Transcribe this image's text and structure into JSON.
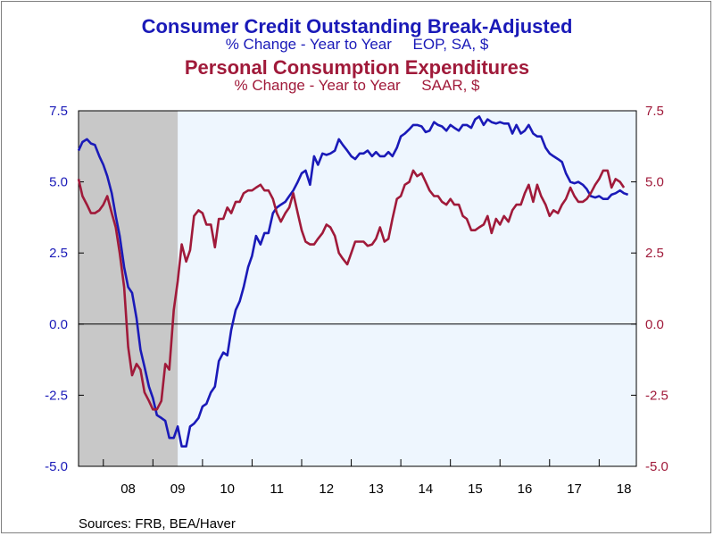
{
  "titles": {
    "title1": "Consumer Credit Outstanding Break-Adjusted",
    "subtitle1": "% Change - Year to Year     EOP, SA, $",
    "title2": "Personal Consumption Expenditures",
    "subtitle2": "% Change - Year to Year     SAAR, $"
  },
  "source": "Sources:  FRB, BEA/Haver",
  "colors": {
    "series1": "#1a1ab8",
    "series2": "#a01a3a",
    "plot_bg": "#eef6fe",
    "recession": "#c8c8c8",
    "axis": "#000000"
  },
  "chart_data": {
    "type": "line",
    "x_range": [
      2007.5,
      2018.75
    ],
    "y_left": {
      "ylim": [
        -5.0,
        7.5
      ],
      "ticks": [
        "7.5",
        "5.0",
        "2.5",
        "0.0",
        "-2.5",
        "-5.0"
      ],
      "tick_values": [
        7.5,
        5.0,
        2.5,
        0.0,
        -2.5,
        -5.0
      ]
    },
    "y_right": {
      "ylim": [
        -5.0,
        7.5
      ],
      "ticks": [
        "7.5",
        "5.0",
        "2.5",
        "0.0",
        "-2.5",
        "-5.0"
      ],
      "tick_values": [
        7.5,
        5.0,
        2.5,
        0.0,
        -2.5,
        -5.0
      ]
    },
    "x_tick_labels": [
      {
        "label": "08",
        "x": 2008.5
      },
      {
        "label": "09",
        "x": 2009.5
      },
      {
        "label": "10",
        "x": 2010.5
      },
      {
        "label": "11",
        "x": 2011.5
      },
      {
        "label": "12",
        "x": 2012.5
      },
      {
        "label": "13",
        "x": 2013.5
      },
      {
        "label": "14",
        "x": 2014.5
      },
      {
        "label": "15",
        "x": 2015.5
      },
      {
        "label": "16",
        "x": 2016.5
      },
      {
        "label": "17",
        "x": 2017.5
      },
      {
        "label": "18",
        "x": 2018.5
      }
    ],
    "year_boundaries": [
      2008,
      2009,
      2010,
      2011,
      2012,
      2013,
      2014,
      2015,
      2016,
      2017,
      2018
    ],
    "recession": [
      2007.5,
      2009.5
    ],
    "series": [
      {
        "name": "Consumer Credit Outstanding Break-Adjusted",
        "color": "#1a1ab8",
        "axis": "left",
        "points": [
          [
            2007.5,
            6.1
          ],
          [
            2007.58,
            6.4
          ],
          [
            2007.67,
            6.5
          ],
          [
            2007.75,
            6.35
          ],
          [
            2007.83,
            6.3
          ],
          [
            2007.92,
            5.9
          ],
          [
            2008.0,
            5.6
          ],
          [
            2008.08,
            5.2
          ],
          [
            2008.17,
            4.6
          ],
          [
            2008.25,
            3.8
          ],
          [
            2008.33,
            3.1
          ],
          [
            2008.42,
            2.0
          ],
          [
            2008.5,
            1.3
          ],
          [
            2008.58,
            1.1
          ],
          [
            2008.67,
            0.2
          ],
          [
            2008.75,
            -0.9
          ],
          [
            2008.83,
            -1.5
          ],
          [
            2008.92,
            -2.2
          ],
          [
            2009.0,
            -2.6
          ],
          [
            2009.08,
            -3.2
          ],
          [
            2009.17,
            -3.3
          ],
          [
            2009.25,
            -3.4
          ],
          [
            2009.33,
            -4.0
          ],
          [
            2009.42,
            -4.0
          ],
          [
            2009.5,
            -3.6
          ],
          [
            2009.58,
            -4.3
          ],
          [
            2009.67,
            -4.3
          ],
          [
            2009.75,
            -3.6
          ],
          [
            2009.83,
            -3.5
          ],
          [
            2009.92,
            -3.3
          ],
          [
            2010.0,
            -2.9
          ],
          [
            2010.08,
            -2.8
          ],
          [
            2010.17,
            -2.4
          ],
          [
            2010.25,
            -2.2
          ],
          [
            2010.33,
            -1.3
          ],
          [
            2010.42,
            -1.0
          ],
          [
            2010.5,
            -1.1
          ],
          [
            2010.58,
            -0.2
          ],
          [
            2010.67,
            0.5
          ],
          [
            2010.75,
            0.8
          ],
          [
            2010.83,
            1.3
          ],
          [
            2010.92,
            2.0
          ],
          [
            2011.0,
            2.4
          ],
          [
            2011.08,
            3.1
          ],
          [
            2011.17,
            2.8
          ],
          [
            2011.25,
            3.2
          ],
          [
            2011.33,
            3.2
          ],
          [
            2011.42,
            3.9
          ],
          [
            2011.5,
            4.1
          ],
          [
            2011.58,
            4.2
          ],
          [
            2011.67,
            4.3
          ],
          [
            2011.75,
            4.5
          ],
          [
            2011.83,
            4.7
          ],
          [
            2011.92,
            5.0
          ],
          [
            2012.0,
            5.3
          ],
          [
            2012.08,
            5.4
          ],
          [
            2012.17,
            4.9
          ],
          [
            2012.25,
            5.9
          ],
          [
            2012.33,
            5.6
          ],
          [
            2012.42,
            6.0
          ],
          [
            2012.5,
            5.95
          ],
          [
            2012.58,
            6.0
          ],
          [
            2012.67,
            6.1
          ],
          [
            2012.75,
            6.5
          ],
          [
            2012.83,
            6.3
          ],
          [
            2012.92,
            6.1
          ],
          [
            2013.0,
            5.9
          ],
          [
            2013.08,
            5.8
          ],
          [
            2013.17,
            6.0
          ],
          [
            2013.25,
            6.0
          ],
          [
            2013.33,
            6.1
          ],
          [
            2013.42,
            5.9
          ],
          [
            2013.5,
            6.05
          ],
          [
            2013.58,
            5.9
          ],
          [
            2013.67,
            5.9
          ],
          [
            2013.75,
            6.05
          ],
          [
            2013.83,
            5.9
          ],
          [
            2013.92,
            6.2
          ],
          [
            2014.0,
            6.6
          ],
          [
            2014.08,
            6.7
          ],
          [
            2014.17,
            6.85
          ],
          [
            2014.25,
            7.0
          ],
          [
            2014.33,
            7.0
          ],
          [
            2014.42,
            6.95
          ],
          [
            2014.5,
            6.75
          ],
          [
            2014.58,
            6.8
          ],
          [
            2014.67,
            7.1
          ],
          [
            2014.75,
            7.0
          ],
          [
            2014.83,
            6.95
          ],
          [
            2014.92,
            6.8
          ],
          [
            2015.0,
            7.0
          ],
          [
            2015.08,
            6.9
          ],
          [
            2015.17,
            6.8
          ],
          [
            2015.25,
            7.0
          ],
          [
            2015.33,
            7.0
          ],
          [
            2015.42,
            6.9
          ],
          [
            2015.5,
            7.2
          ],
          [
            2015.58,
            7.3
          ],
          [
            2015.67,
            7.0
          ],
          [
            2015.75,
            7.2
          ],
          [
            2015.83,
            7.1
          ],
          [
            2015.92,
            7.05
          ],
          [
            2016.0,
            7.1
          ],
          [
            2016.08,
            7.05
          ],
          [
            2016.17,
            7.05
          ],
          [
            2016.25,
            6.7
          ],
          [
            2016.33,
            7.0
          ],
          [
            2016.42,
            6.7
          ],
          [
            2016.5,
            6.8
          ],
          [
            2016.58,
            7.0
          ],
          [
            2016.67,
            6.7
          ],
          [
            2016.75,
            6.6
          ],
          [
            2016.83,
            6.6
          ],
          [
            2016.92,
            6.2
          ],
          [
            2017.0,
            6.0
          ],
          [
            2017.08,
            5.9
          ],
          [
            2017.17,
            5.8
          ],
          [
            2017.25,
            5.7
          ],
          [
            2017.33,
            5.3
          ],
          [
            2017.42,
            5.0
          ],
          [
            2017.5,
            4.95
          ],
          [
            2017.58,
            5.0
          ],
          [
            2017.67,
            4.9
          ],
          [
            2017.75,
            4.75
          ],
          [
            2017.83,
            4.5
          ],
          [
            2017.92,
            4.45
          ],
          [
            2018.0,
            4.5
          ],
          [
            2018.08,
            4.4
          ],
          [
            2018.17,
            4.4
          ],
          [
            2018.25,
            4.55
          ],
          [
            2018.33,
            4.6
          ],
          [
            2018.42,
            4.7
          ],
          [
            2018.5,
            4.6
          ],
          [
            2018.58,
            4.55
          ]
        ]
      },
      {
        "name": "Personal Consumption Expenditures",
        "color": "#a01a3a",
        "axis": "right",
        "points": [
          [
            2007.5,
            5.1
          ],
          [
            2007.58,
            4.5
          ],
          [
            2007.67,
            4.2
          ],
          [
            2007.75,
            3.9
          ],
          [
            2007.83,
            3.9
          ],
          [
            2007.92,
            4.0
          ],
          [
            2008.0,
            4.2
          ],
          [
            2008.08,
            4.5
          ],
          [
            2008.17,
            3.9
          ],
          [
            2008.25,
            3.4
          ],
          [
            2008.33,
            2.5
          ],
          [
            2008.42,
            1.3
          ],
          [
            2008.5,
            -0.8
          ],
          [
            2008.58,
            -1.8
          ],
          [
            2008.67,
            -1.4
          ],
          [
            2008.75,
            -1.6
          ],
          [
            2008.83,
            -2.4
          ],
          [
            2008.92,
            -2.7
          ],
          [
            2009.0,
            -3.0
          ],
          [
            2009.08,
            -3.0
          ],
          [
            2009.17,
            -2.7
          ],
          [
            2009.25,
            -1.4
          ],
          [
            2009.33,
            -1.6
          ],
          [
            2009.42,
            0.5
          ],
          [
            2009.5,
            1.5
          ],
          [
            2009.58,
            2.8
          ],
          [
            2009.67,
            2.2
          ],
          [
            2009.75,
            2.6
          ],
          [
            2009.83,
            3.8
          ],
          [
            2009.92,
            4.0
          ],
          [
            2010.0,
            3.9
          ],
          [
            2010.08,
            3.5
          ],
          [
            2010.17,
            3.5
          ],
          [
            2010.25,
            2.7
          ],
          [
            2010.33,
            3.7
          ],
          [
            2010.42,
            3.7
          ],
          [
            2010.5,
            4.1
          ],
          [
            2010.58,
            3.9
          ],
          [
            2010.67,
            4.3
          ],
          [
            2010.75,
            4.3
          ],
          [
            2010.83,
            4.6
          ],
          [
            2010.92,
            4.7
          ],
          [
            2011.0,
            4.7
          ],
          [
            2011.08,
            4.8
          ],
          [
            2011.17,
            4.9
          ],
          [
            2011.25,
            4.7
          ],
          [
            2011.33,
            4.7
          ],
          [
            2011.42,
            4.4
          ],
          [
            2011.5,
            3.9
          ],
          [
            2011.58,
            3.6
          ],
          [
            2011.67,
            3.9
          ],
          [
            2011.75,
            4.1
          ],
          [
            2011.83,
            4.6
          ],
          [
            2011.92,
            3.9
          ],
          [
            2012.0,
            3.3
          ],
          [
            2012.08,
            2.9
          ],
          [
            2012.17,
            2.8
          ],
          [
            2012.25,
            2.8
          ],
          [
            2012.33,
            3.0
          ],
          [
            2012.42,
            3.2
          ],
          [
            2012.5,
            3.5
          ],
          [
            2012.58,
            3.4
          ],
          [
            2012.67,
            3.1
          ],
          [
            2012.75,
            2.5
          ],
          [
            2012.83,
            2.3
          ],
          [
            2012.92,
            2.1
          ],
          [
            2013.0,
            2.5
          ],
          [
            2013.08,
            2.9
          ],
          [
            2013.17,
            2.9
          ],
          [
            2013.25,
            2.9
          ],
          [
            2013.33,
            2.75
          ],
          [
            2013.42,
            2.8
          ],
          [
            2013.5,
            3.0
          ],
          [
            2013.58,
            3.4
          ],
          [
            2013.67,
            2.9
          ],
          [
            2013.75,
            3.0
          ],
          [
            2013.83,
            3.7
          ],
          [
            2013.92,
            4.4
          ],
          [
            2014.0,
            4.5
          ],
          [
            2014.08,
            4.9
          ],
          [
            2014.17,
            5.0
          ],
          [
            2014.25,
            5.4
          ],
          [
            2014.33,
            5.2
          ],
          [
            2014.42,
            5.3
          ],
          [
            2014.5,
            5.0
          ],
          [
            2014.58,
            4.7
          ],
          [
            2014.67,
            4.5
          ],
          [
            2014.75,
            4.5
          ],
          [
            2014.83,
            4.3
          ],
          [
            2014.92,
            4.2
          ],
          [
            2015.0,
            4.4
          ],
          [
            2015.08,
            4.2
          ],
          [
            2015.17,
            4.2
          ],
          [
            2015.25,
            3.8
          ],
          [
            2015.33,
            3.7
          ],
          [
            2015.42,
            3.3
          ],
          [
            2015.5,
            3.3
          ],
          [
            2015.58,
            3.4
          ],
          [
            2015.67,
            3.5
          ],
          [
            2015.75,
            3.8
          ],
          [
            2015.83,
            3.2
          ],
          [
            2015.92,
            3.7
          ],
          [
            2016.0,
            3.5
          ],
          [
            2016.08,
            3.8
          ],
          [
            2016.17,
            3.6
          ],
          [
            2016.25,
            4.0
          ],
          [
            2016.33,
            4.2
          ],
          [
            2016.42,
            4.2
          ],
          [
            2016.5,
            4.6
          ],
          [
            2016.58,
            4.9
          ],
          [
            2016.67,
            4.3
          ],
          [
            2016.75,
            4.9
          ],
          [
            2016.83,
            4.5
          ],
          [
            2016.92,
            4.2
          ],
          [
            2017.0,
            3.8
          ],
          [
            2017.08,
            4.0
          ],
          [
            2017.17,
            3.9
          ],
          [
            2017.25,
            4.2
          ],
          [
            2017.33,
            4.4
          ],
          [
            2017.42,
            4.8
          ],
          [
            2017.5,
            4.5
          ],
          [
            2017.58,
            4.3
          ],
          [
            2017.67,
            4.3
          ],
          [
            2017.75,
            4.4
          ],
          [
            2017.83,
            4.6
          ],
          [
            2017.92,
            4.9
          ],
          [
            2018.0,
            5.1
          ],
          [
            2018.08,
            5.4
          ],
          [
            2018.17,
            5.4
          ],
          [
            2018.25,
            4.8
          ],
          [
            2018.33,
            5.1
          ],
          [
            2018.42,
            5.0
          ],
          [
            2018.5,
            4.8
          ]
        ]
      }
    ]
  }
}
